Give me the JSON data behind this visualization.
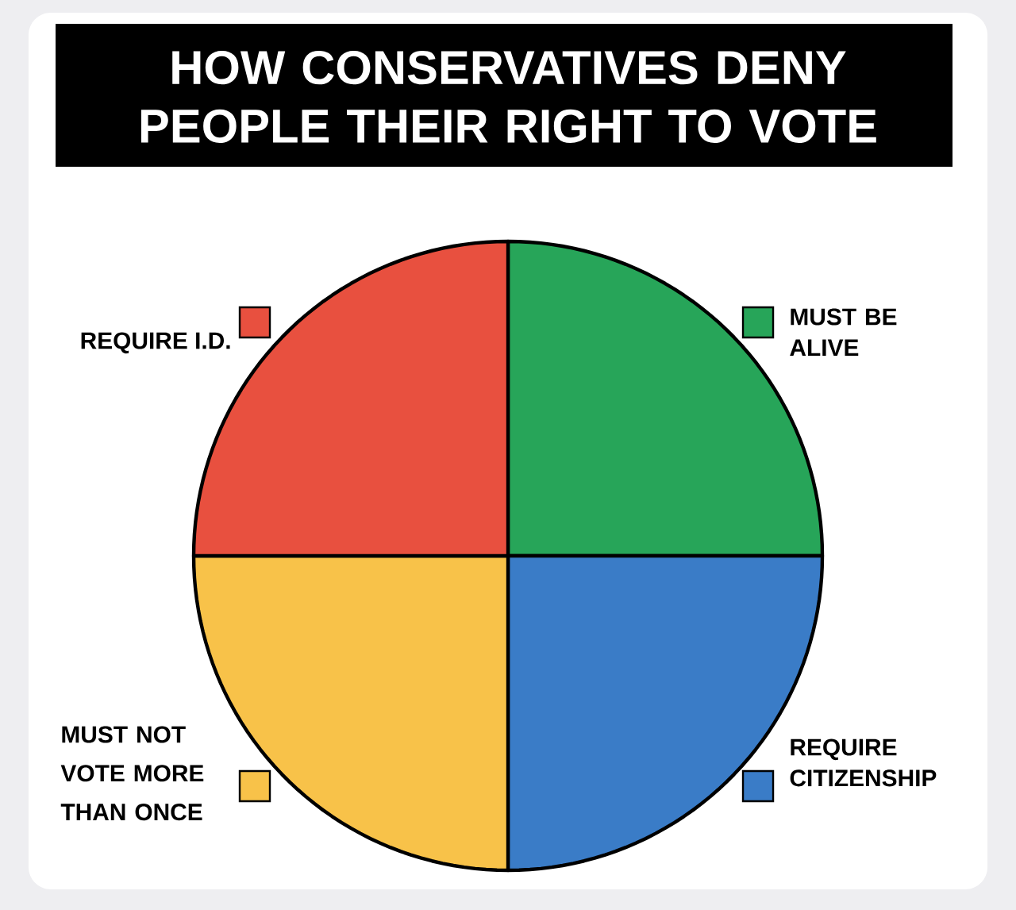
{
  "chart_data": {
    "type": "pie",
    "title": "HOW CONSERVATIVES DENY PEOPLE THEIR RIGHT TO VOTE",
    "categories": [
      "MUST BE ALIVE",
      "REQUIRE CITIZENSHIP",
      "MUST NOT VOTE MORE THAN ONCE",
      "REQUIRE I.D."
    ],
    "values": [
      25,
      25,
      25,
      25
    ],
    "colors": [
      "#27a559",
      "#3a7cc7",
      "#f8c249",
      "#e8503f"
    ]
  }
}
